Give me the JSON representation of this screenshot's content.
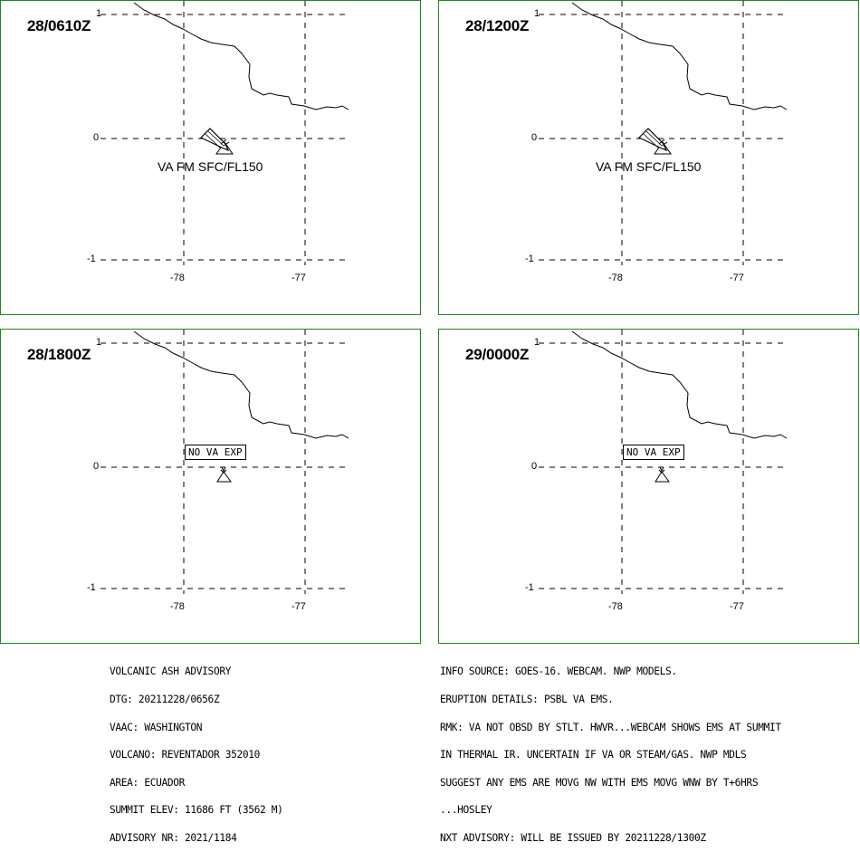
{
  "panels": [
    {
      "time": "28/0610Z",
      "label": "VA FM SFC/FL150",
      "no_va": ""
    },
    {
      "time": "28/1200Z",
      "label": "VA FM SFC/FL150",
      "no_va": ""
    },
    {
      "time": "28/1800Z",
      "label": "",
      "no_va": "NO VA EXP"
    },
    {
      "time": "29/0000Z",
      "label": "",
      "no_va": "NO VA EXP"
    }
  ],
  "axes": {
    "y_top": "1",
    "y_mid": "0",
    "y_bot": "-1",
    "x_left": "-78",
    "x_right": "-77"
  },
  "colors": {
    "panel_border": "#1a8a1a"
  },
  "advisory_left": [
    "VOLCANIC ASH ADVISORY",
    "DTG: 20211228/0656Z",
    "VAAC: WASHINGTON",
    "VOLCANO: REVENTADOR 352010",
    "AREA: ECUADOR",
    "SUMMIT ELEV: 11686 FT (3562 M)",
    "ADVISORY NR: 2021/1184"
  ],
  "advisory_right": [
    "INFO SOURCE: GOES-16. WEBCAM. NWP MODELS.",
    "ERUPTION DETAILS: PSBL VA EMS.",
    "RMK: VA NOT OBSD BY STLT. HWVR...WEBCAM SHOWS EMS AT SUMMIT",
    "IN THERMAL IR. UNCERTAIN IF VA OR STEAM/GAS. NWP MDLS",
    "SUGGEST ANY EMS ARE MOVG NW WITH EMS MOVG WNW BY T+6HRS",
    "...HOSLEY",
    "NXT ADVISORY: WILL BE ISSUED BY 20211228/1300Z"
  ]
}
